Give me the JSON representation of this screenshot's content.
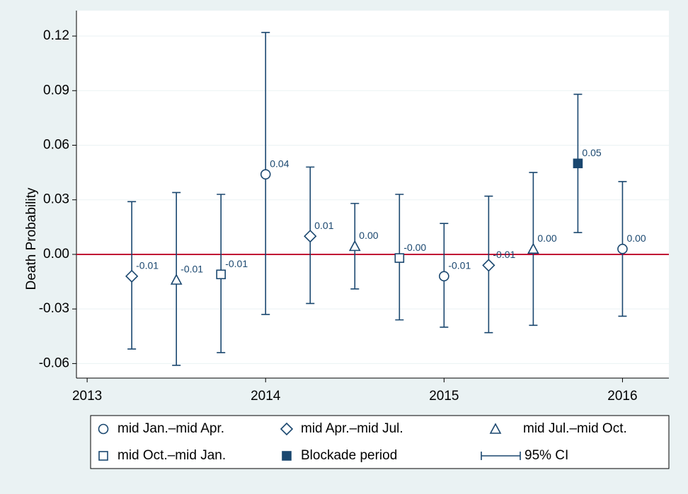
{
  "chart_data": {
    "type": "errorbar",
    "y_label": "Death Probability",
    "xlim": [
      2012.94,
      2016.26
    ],
    "xticks": [
      2013,
      2014,
      2015,
      2016
    ],
    "ylim": [
      -0.068,
      0.134
    ],
    "yticks": [
      0.12,
      0.09,
      0.06,
      0.03,
      {
        "value": 0,
        "label": "0.00"
      },
      -0.03,
      -0.06
    ],
    "grid": true,
    "reference_line": {
      "value": 0,
      "color": "#c10534"
    },
    "color": "#1a476f",
    "ci_label": "95% CI",
    "series": [
      {
        "name": "mid Jan.–mid Apr.",
        "marker": "circle",
        "x": [
          2014.0,
          2015.0,
          2016.0
        ],
        "values": [
          0.044,
          -0.012,
          0.003
        ],
        "ci_low": [
          -0.033,
          -0.04,
          -0.034
        ],
        "ci_high": [
          0.122,
          0.017,
          0.04
        ],
        "value_labels": [
          "0.04",
          "-0.01",
          "0.00"
        ]
      },
      {
        "name": "mid Apr.–mid Jul.",
        "marker": "diamond",
        "x": [
          2013.25,
          2014.25,
          2015.25
        ],
        "values": [
          -0.012,
          0.01,
          -0.006
        ],
        "ci_low": [
          -0.052,
          -0.027,
          -0.043
        ],
        "ci_high": [
          0.029,
          0.048,
          0.032
        ],
        "value_labels": [
          "-0.01",
          "0.01",
          "-0.01"
        ]
      },
      {
        "name": "mid Jul.–mid Oct.",
        "marker": "triangle",
        "x": [
          2013.5,
          2014.5,
          2015.5
        ],
        "values": [
          -0.014,
          0.0045,
          0.003
        ],
        "ci_low": [
          -0.061,
          -0.019,
          -0.039
        ],
        "ci_high": [
          0.034,
          0.028,
          0.045
        ],
        "value_labels": [
          "-0.01",
          "0.00",
          "0.00"
        ]
      },
      {
        "name": "mid Oct.–mid Jan.",
        "marker": "square",
        "x": [
          2013.75,
          2014.75
        ],
        "values": [
          -0.011,
          -0.002
        ],
        "ci_low": [
          -0.054,
          -0.036
        ],
        "ci_high": [
          0.033,
          0.033
        ],
        "value_labels": [
          "-0.01",
          "-0.00"
        ]
      },
      {
        "name": "Blockade period",
        "marker": "filled-square",
        "x": [
          2015.75
        ],
        "values": [
          0.05
        ],
        "ci_low": [
          0.012
        ],
        "ci_high": [
          0.088
        ],
        "value_labels": [
          "0.05"
        ]
      }
    ]
  }
}
